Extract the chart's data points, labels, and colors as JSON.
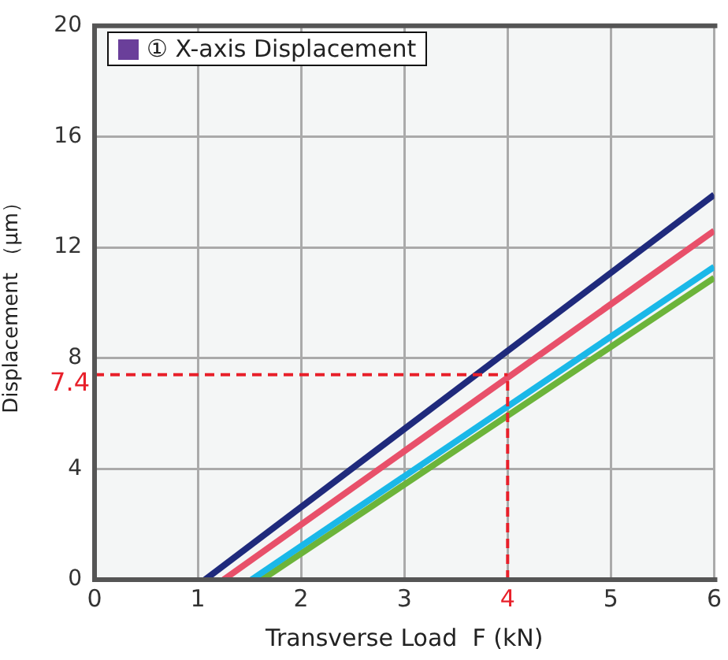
{
  "chart_data": {
    "type": "line",
    "ylabel": "Displacement （μm）",
    "xlabel": "Transverse Load  F (kN)",
    "legend_title": "① X-axis Displacement",
    "xlim": [
      0,
      6
    ],
    "xticks": [
      0,
      1,
      2,
      3,
      4,
      5,
      6
    ],
    "ylim": [
      0,
      20
    ],
    "yticks": [
      0,
      4,
      8,
      12,
      16,
      20
    ],
    "grid": true,
    "legend": false,
    "marker": "none",
    "line_style": "solid",
    "series": [
      {
        "color": "#1f2a7c",
        "x": [
          1.07,
          6
        ],
        "values": [
          0,
          13.9
        ]
      },
      {
        "color": "#e8506a",
        "x": [
          1.25,
          6
        ],
        "values": [
          0,
          12.6
        ]
      },
      {
        "color": "#1ab8e8",
        "x": [
          1.52,
          6
        ],
        "values": [
          0,
          11.3
        ]
      },
      {
        "color": "#6cb43a",
        "x": [
          1.62,
          6
        ],
        "values": [
          0,
          10.9
        ]
      }
    ],
    "ref_lines": [
      {
        "axis": "y",
        "value": 7.4,
        "label": "7.4",
        "color": "#e8202a",
        "line_style": "dashed"
      },
      {
        "axis": "x",
        "value": 4,
        "label": "4",
        "color": "#e8202a",
        "line_style": "dashed"
      }
    ]
  }
}
